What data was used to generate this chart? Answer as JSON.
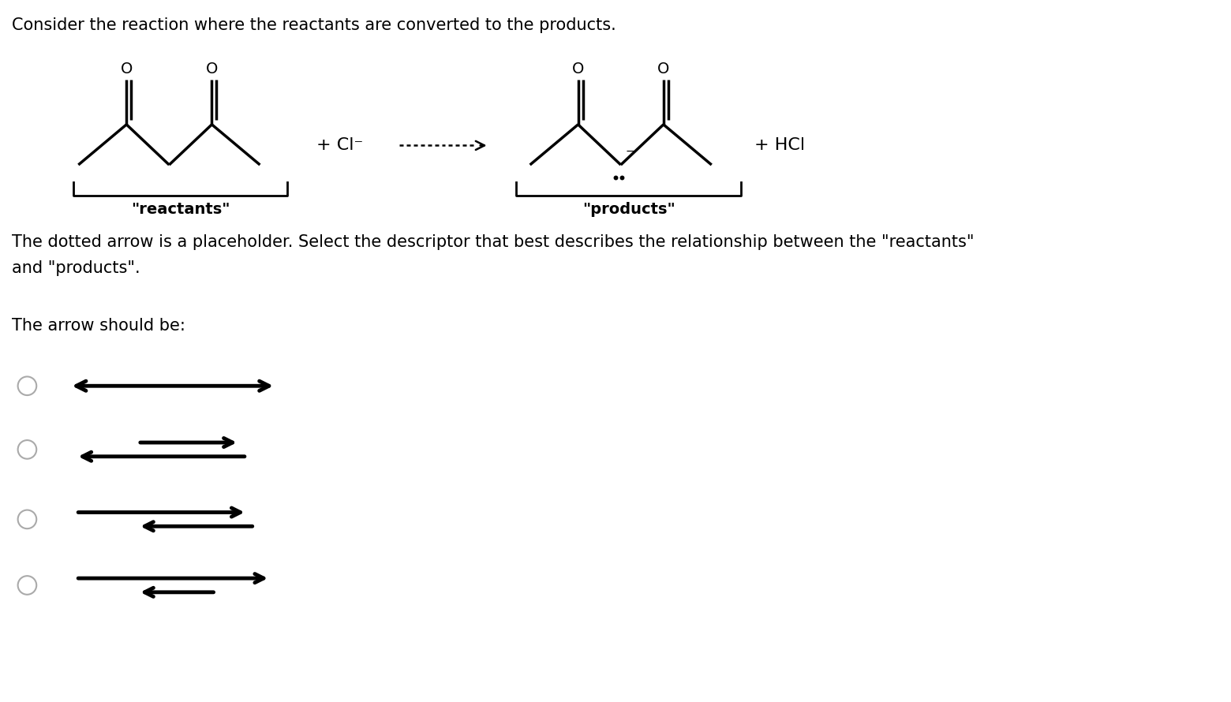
{
  "title_text": "Consider the reaction where the reactants are converted to the products.",
  "desc_text": "The dotted arrow is a placeholder. Select the descriptor that best describes the relationship between the \"reactants\"\nand \"products\".",
  "arrow_label": "The arrow should be:",
  "bg_color": "#ffffff",
  "text_color": "#000000",
  "font_size_title": 15,
  "font_size_body": 15,
  "font_size_label": 15
}
